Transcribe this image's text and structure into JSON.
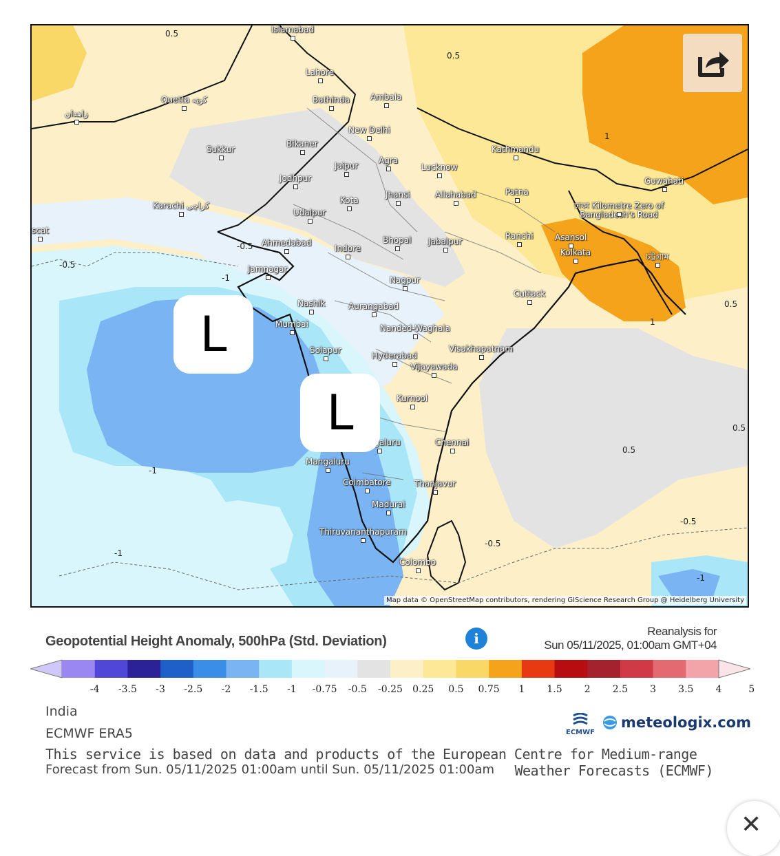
{
  "map": {
    "cities": [
      {
        "name": "Islamabad"
      },
      {
        "name": "Lahore"
      },
      {
        "name": "Quetta کوټه"
      },
      {
        "name": "زاهدان"
      },
      {
        "name": "Bathinda"
      },
      {
        "name": "Ambala"
      },
      {
        "name": "New Delhi"
      },
      {
        "name": "Sukkur"
      },
      {
        "name": "Bikaner"
      },
      {
        "name": "Jaipur"
      },
      {
        "name": "Agra"
      },
      {
        "name": "Jodhpur"
      },
      {
        "name": "Lucknow"
      },
      {
        "name": "Kathmandu"
      },
      {
        "name": "Karachi کراچی"
      },
      {
        "name": "Kota"
      },
      {
        "name": "Jhansi"
      },
      {
        "name": "Allahabad"
      },
      {
        "name": "Patna"
      },
      {
        "name": "Udaipur"
      },
      {
        "name": "Guwahati"
      },
      {
        "name": "ঢাকা Kilometre Zero of Bangladesh's Road"
      },
      {
        "name": "Ahmedabad"
      },
      {
        "name": "Indore"
      },
      {
        "name": "Bhopal"
      },
      {
        "name": "Jabalpur"
      },
      {
        "name": "Ranchi"
      },
      {
        "name": "Asansol"
      },
      {
        "name": "Kolkata"
      },
      {
        "name": "চট্টগ্রাম"
      },
      {
        "name": "Jamnagar"
      },
      {
        "name": "Nagpur"
      },
      {
        "name": "Cuttack"
      },
      {
        "name": "Nashik"
      },
      {
        "name": "Aurangabad"
      },
      {
        "name": "Mumbai"
      },
      {
        "name": "Nanded-Waghala"
      },
      {
        "name": "Visakhapatnam"
      },
      {
        "name": "Solapur"
      },
      {
        "name": "Hyderabad"
      },
      {
        "name": "Vijayawada"
      },
      {
        "name": "Kurnool"
      },
      {
        "name": "Bengaluru"
      },
      {
        "name": "Chennai"
      },
      {
        "name": "Mangaluru"
      },
      {
        "name": "Coimbatore"
      },
      {
        "name": "Thanjavur"
      },
      {
        "name": "Madurai"
      },
      {
        "name": "Thiruvananthapuram"
      },
      {
        "name": "Colombo"
      },
      {
        "name": "scat"
      }
    ],
    "contour_labels": [
      "0.5",
      "0.5",
      "-0.5",
      "-0.5",
      "-1",
      "-1",
      "-1",
      "1",
      "1",
      "0.5",
      "0.5",
      "-0.5",
      "-0.5",
      "-1",
      "0.5"
    ],
    "low_marker": "L",
    "attribution": "Map data © OpenStreetMap contributors, rendering GIScience Research Group @ Heidelberg University"
  },
  "header": {
    "title": "Geopotential Height Anomaly, 500hPa (Std. Deviation)",
    "reanalysis_line1": "Reanalysis for",
    "reanalysis_line2": "Sun 05/11/2025, 01:00am GMT+04"
  },
  "legend": {
    "colors": [
      "#d0c8f8",
      "#9b87f2",
      "#5046d8",
      "#2a2296",
      "#1f5fc8",
      "#3b8ee8",
      "#7ab4f2",
      "#a9e6f8",
      "#d8f6fb",
      "#e8f2fa",
      "#e3e3e3",
      "#fdf0c8",
      "#fce896",
      "#f9d868",
      "#f5a31a",
      "#e83a12",
      "#b80d10",
      "#a4212e",
      "#cf3a46",
      "#e46a72",
      "#f3a4a8",
      "#fbe4e8"
    ],
    "ticks": [
      "-4",
      "-3.5",
      "-3",
      "-2.5",
      "-2",
      "-1.5",
      "-1",
      "-0.75",
      "-0.5",
      "-0.25",
      "0.25",
      "0.5",
      "0.75",
      "1",
      "1.5",
      "2",
      "2.5",
      "3",
      "3.5",
      "4",
      "5"
    ]
  },
  "footer": {
    "region": "India",
    "model": "ECMWF ERA5",
    "service_line1": "This service is based on data and products of the European Centre for Medium-range",
    "service_line2": "Weather Forecasts (ECMWF)",
    "forecast": "Forecast from Sun. 05/11/2025 01:00am until Sun. 05/11/2025 01:00am",
    "ecmwf_label": "ECMWF",
    "meteologix_label": "meteologix.com"
  },
  "share_icon": "share-icon",
  "close_icon": "close-icon",
  "info_icon": "i"
}
